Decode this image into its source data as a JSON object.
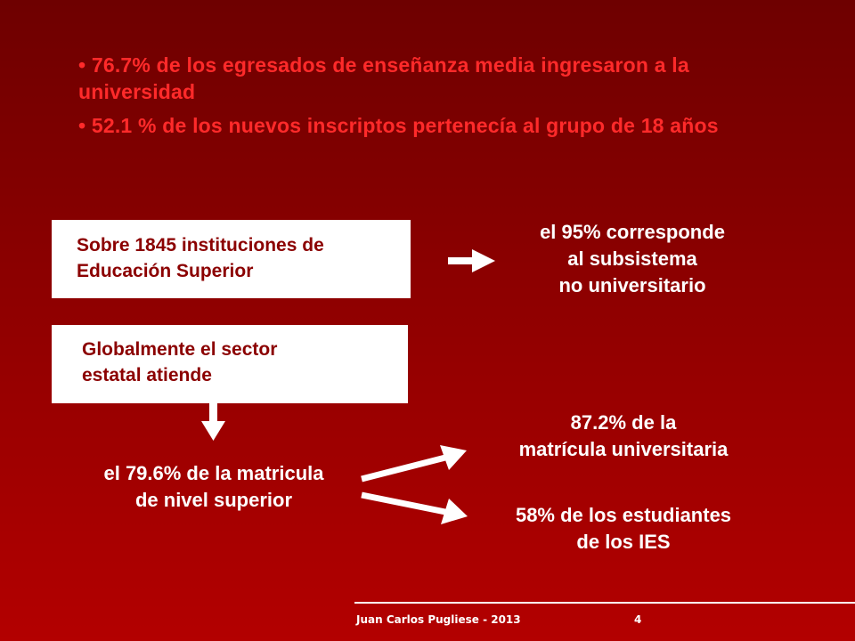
{
  "bullets": [
    "• 76.7% de los egresados de enseñanza media ingresaron a la universidad",
    "• 52.1 % de los nuevos inscriptos pertenecía al grupo de 18 años"
  ],
  "box1": {
    "line1": "Sobre 1845 instituciones de",
    "line2": "Educación Superior"
  },
  "box2": {
    "line1": "Globalmente el sector",
    "line2": "estatal atiende"
  },
  "subsistema": {
    "line1": "el 95% corresponde",
    "line2": "al subsistema",
    "line3": "no universitario"
  },
  "matricula": {
    "line1": "el 79.6% de la matricula",
    "line2": "de nivel superior"
  },
  "universitaria": {
    "line1": "87.2% de la",
    "line2": "matrícula universitaria"
  },
  "ies": {
    "line1": "58% de los estudiantes",
    "line2": "de los IES"
  },
  "footer": {
    "author": "Juan Carlos Pugliese  -  2013",
    "page": "4"
  },
  "colors": {
    "accent_red": "#ff2a2a",
    "box_text": "#8b0000",
    "background_top": "#6e0000",
    "background_bottom": "#b30000"
  }
}
